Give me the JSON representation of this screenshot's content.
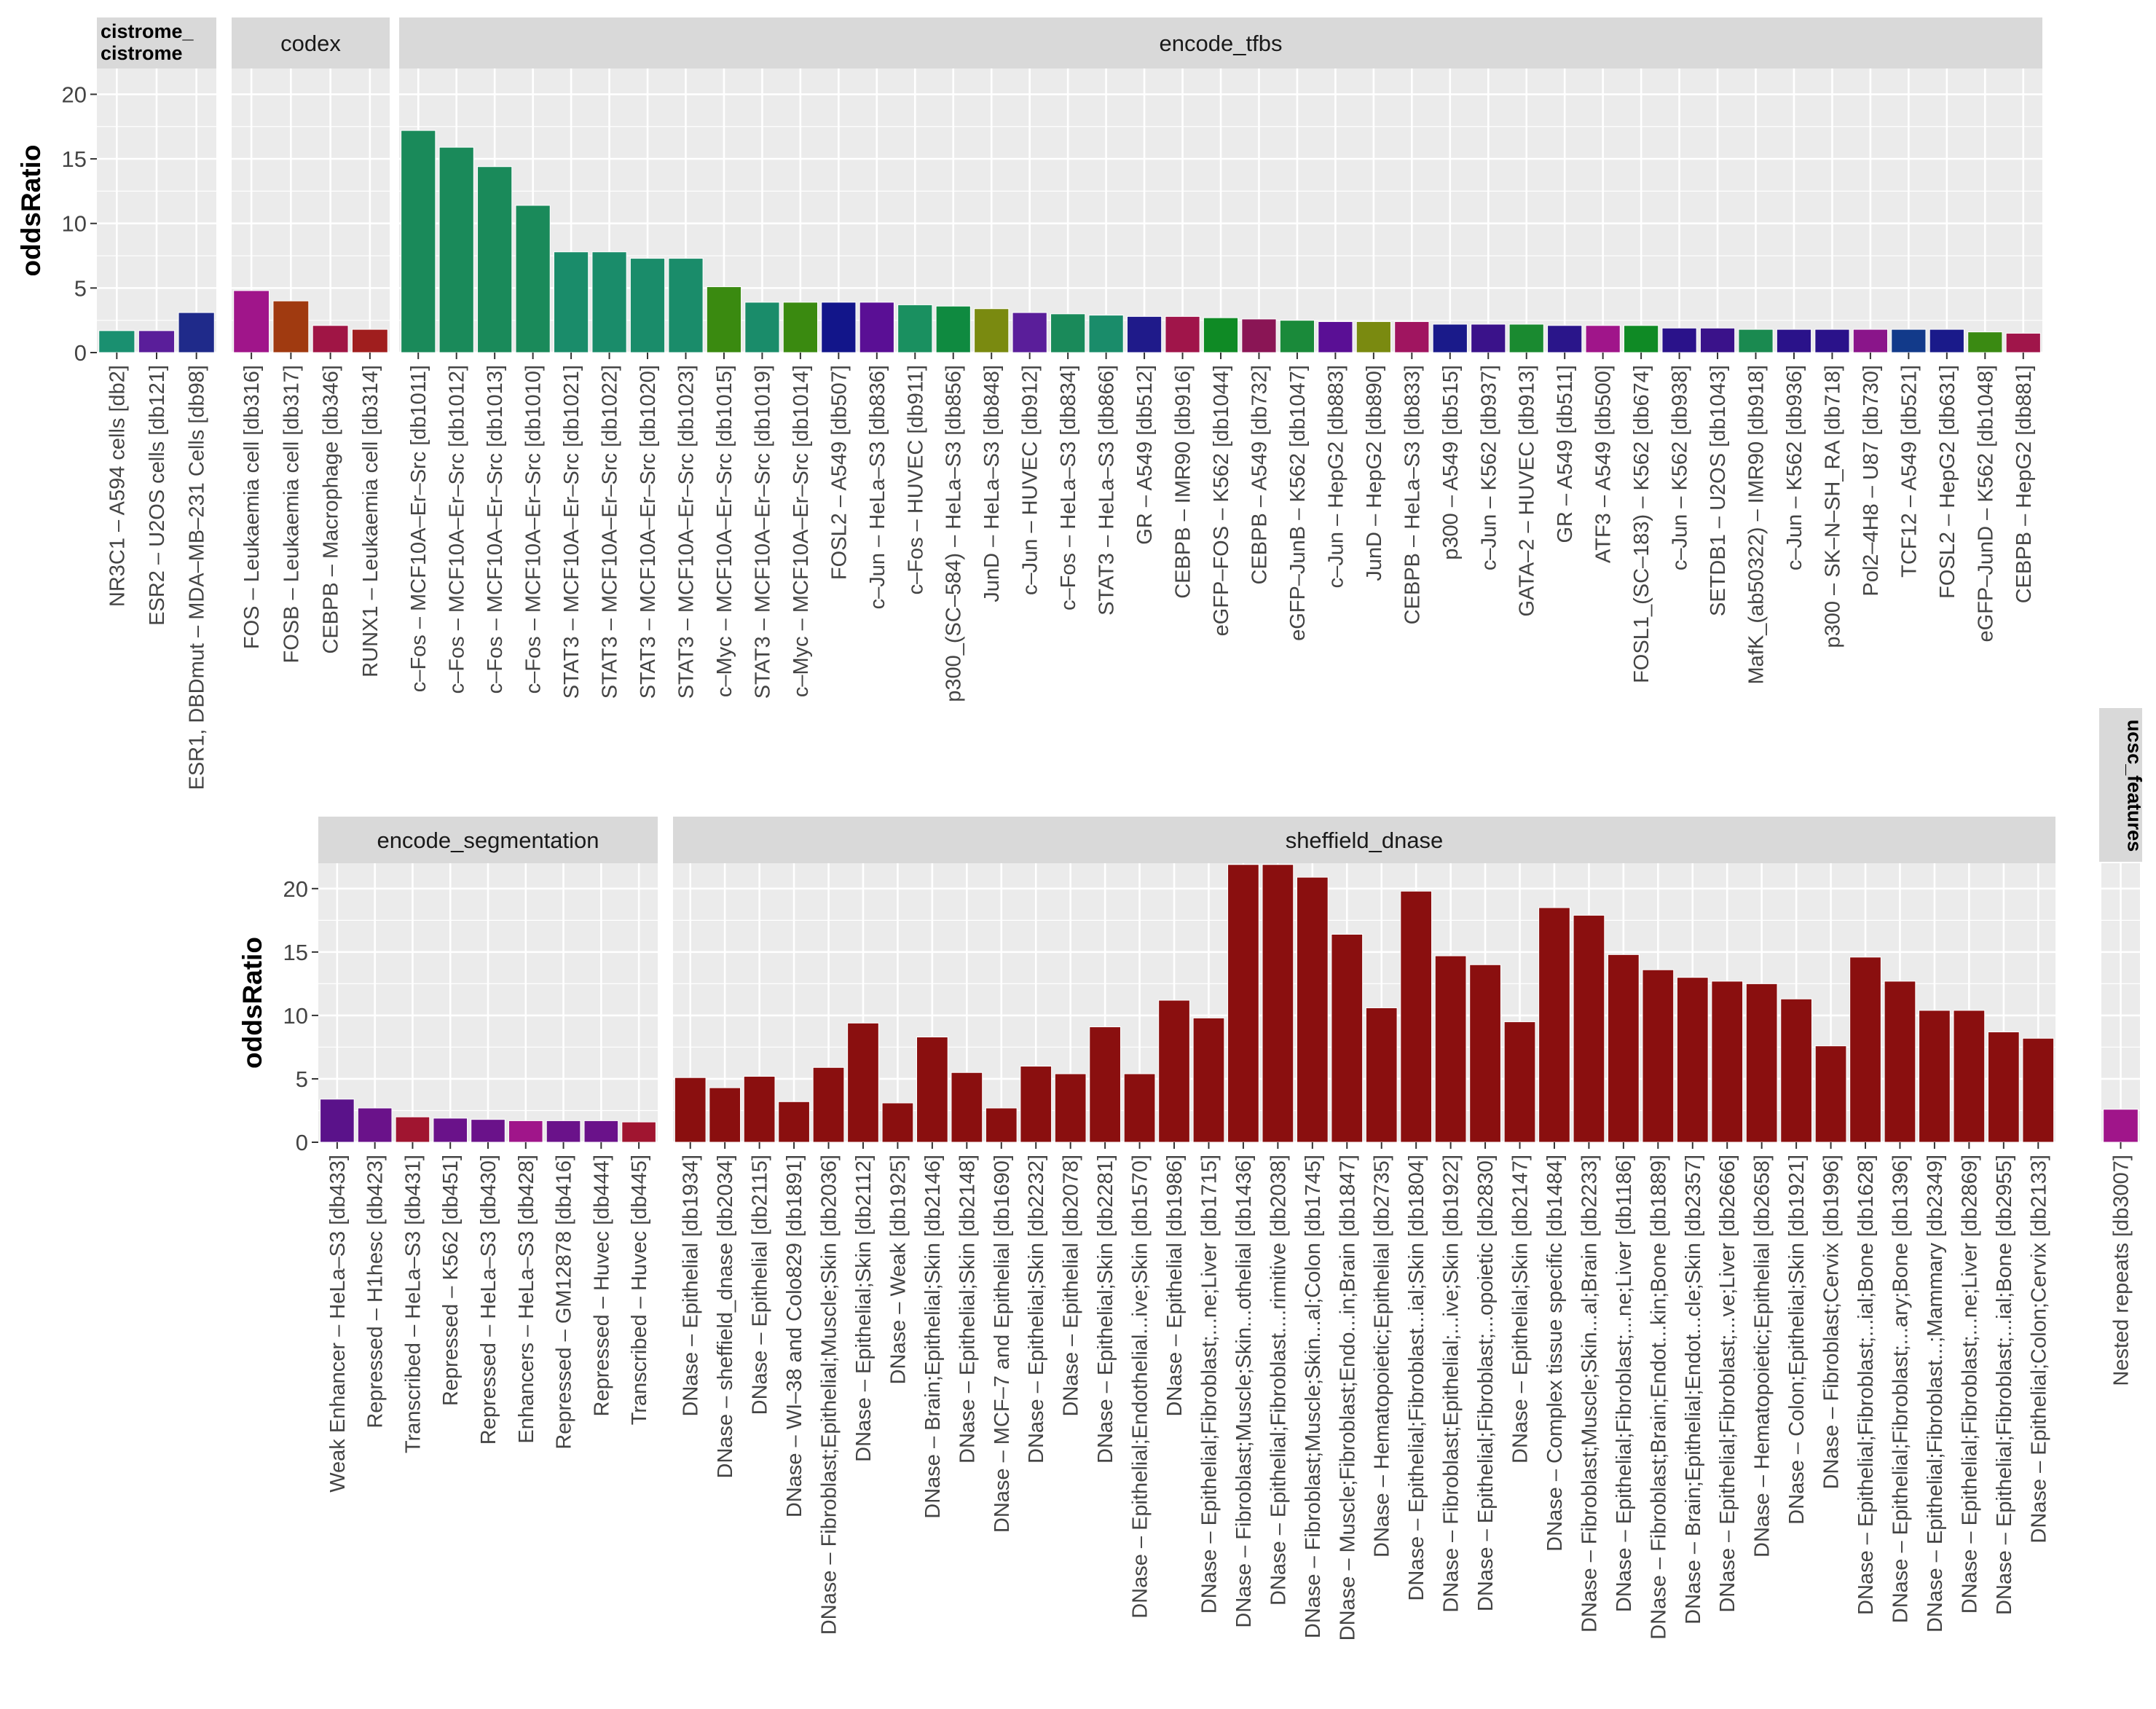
{
  "chart_data": {
    "type": "bar",
    "ylabel": "oddsRatio",
    "ylim": [
      0,
      22
    ],
    "yticks": [
      0,
      5,
      10,
      15,
      20
    ],
    "grid": true,
    "legend": "none",
    "facets": [
      {
        "name": "cistrome_cistrome",
        "strip_lines": [
          "cistrome_",
          "cistrome"
        ],
        "categories": [
          "NR3C1 – A594 cells [db2]",
          "ESR2 – U2OS cells [db121]",
          "ESR1, DBDmut – MDA–MB–231 Cells [db98]"
        ],
        "values": [
          1.7,
          1.7,
          3.1
        ],
        "colors": [
          "#1a9070",
          "#5a1e9a",
          "#1f2a8a"
        ]
      },
      {
        "name": "codex",
        "strip_lines": [
          "codex"
        ],
        "categories": [
          "FOS – Leukaemia cell [db316]",
          "FOSB – Leukaemia cell [db317]",
          "CEBPB – Macrophage [db346]",
          "RUNX1 – Leukaemia cell [db314]"
        ],
        "values": [
          4.8,
          4.0,
          2.1,
          1.8
        ],
        "colors": [
          "#a0158a",
          "#a03a10",
          "#a01545",
          "#a01e1e"
        ]
      },
      {
        "name": "encode_tfbs",
        "strip_lines": [
          "encode_tfbs"
        ],
        "categories": [
          "c–Fos – MCF10A–Er–Src [db1011]",
          "c–Fos – MCF10A–Er–Src [db1012]",
          "c–Fos – MCF10A–Er–Src [db1013]",
          "c–Fos – MCF10A–Er–Src [db1010]",
          "STAT3 – MCF10A–Er–Src [db1021]",
          "STAT3 – MCF10A–Er–Src [db1022]",
          "STAT3 – MCF10A–Er–Src [db1020]",
          "STAT3 – MCF10A–Er–Src [db1023]",
          "c–Myc – MCF10A–Er–Src [db1015]",
          "STAT3 – MCF10A–Er–Src [db1019]",
          "c–Myc – MCF10A–Er–Src [db1014]",
          "FOSL2 – A549 [db507]",
          "c–Jun – HeLa–S3 [db836]",
          "c–Fos – HUVEC [db911]",
          "p300_(SC–584) – HeLa–S3 [db856]",
          "JunD – HeLa–S3 [db848]",
          "c–Jun – HUVEC [db912]",
          "c–Fos – HeLa–S3 [db834]",
          "STAT3 – HeLa–S3 [db866]",
          "GR – A549 [db512]",
          "CEBPB – IMR90 [db916]",
          "eGFP–FOS – K562 [db1044]",
          "CEBPB – A549 [db732]",
          "eGFP–JunB – K562 [db1047]",
          "c–Jun – HepG2 [db883]",
          "JunD – HepG2 [db890]",
          "CEBPB – HeLa–S3 [db833]",
          "p300 – A549 [db515]",
          "c–Jun – K562 [db937]",
          "GATA–2 – HUVEC [db913]",
          "GR – A549 [db511]",
          "ATF3 – A549 [db500]",
          "FOSL1_(SC–183) – K562 [db674]",
          "c–Jun – K562 [db938]",
          "SETDB1 – U2OS [db1043]",
          "MafK_(ab50322) – IMR90 [db918]",
          "c–Jun – K562 [db936]",
          "p300 – SK–N–SH_RA [db718]",
          "Pol2–4H8 – U87 [db730]",
          "TCF12 – A549 [db521]",
          "FOSL2 – HepG2 [db631]",
          "eGFP–JunD – K562 [db1048]",
          "CEBPB – HepG2 [db881]"
        ],
        "values": [
          17.2,
          15.9,
          14.4,
          11.4,
          7.8,
          7.8,
          7.3,
          7.3,
          5.1,
          3.9,
          3.9,
          3.9,
          3.9,
          3.7,
          3.6,
          3.4,
          3.1,
          3.0,
          2.9,
          2.8,
          2.8,
          2.7,
          2.6,
          2.5,
          2.4,
          2.4,
          2.4,
          2.2,
          2.2,
          2.2,
          2.1,
          2.1,
          2.1,
          1.9,
          1.9,
          1.8,
          1.8,
          1.8,
          1.8,
          1.8,
          1.8,
          1.6,
          1.5
        ],
        "colors": [
          "#1a8a5a",
          "#1a8a5a",
          "#1a8a5a",
          "#1a8a5a",
          "#1a8c6a",
          "#1a8c6a",
          "#1a8c6a",
          "#1a8c6a",
          "#3a8a10",
          "#1a8c6a",
          "#3a8a10",
          "#12158a",
          "#5a0f95",
          "#1a9060",
          "#0f8a40",
          "#7a8a10",
          "#5a1e9a",
          "#1a8a5a",
          "#1a8c6a",
          "#1f1a8a",
          "#a0154a",
          "#0f8a25",
          "#8a1555",
          "#1a8a3a",
          "#5a0f95",
          "#7a8a10",
          "#a01560",
          "#1a1a8a",
          "#3a128a",
          "#1a8a30",
          "#2a158a",
          "#a0158a",
          "#0f8a25",
          "#2a128a",
          "#3a128a",
          "#1a8a50",
          "#2a128a",
          "#2a128a",
          "#8a158a",
          "#123a8a",
          "#1a1a8a",
          "#3a8a12",
          "#a0154a"
        ]
      },
      {
        "name": "encode_segmentation",
        "strip_lines": [
          "encode_segmentation"
        ],
        "categories": [
          "Weak Enhancer – HeLa–S3 [db433]",
          "Repressed – H1hesc [db423]",
          "Transcribed – HeLa–S3 [db431]",
          "Repressed – K562 [db451]",
          "Repressed – HeLa–S3 [db430]",
          "Enhancers – HeLa–S3 [db428]",
          "Repressed – GM12878 [db416]",
          "Repressed – Huvec [db444]",
          "Transcribed – Huvec [db445]"
        ],
        "values": [
          3.4,
          2.7,
          2.0,
          1.9,
          1.8,
          1.7,
          1.7,
          1.7,
          1.6
        ],
        "colors": [
          "#5a128a",
          "#6a128a",
          "#a01530",
          "#6a128a",
          "#6a128a",
          "#a0158a",
          "#6a128a",
          "#6a128a",
          "#a01530"
        ]
      },
      {
        "name": "sheffield_dnase",
        "strip_lines": [
          "sheffield_dnase"
        ],
        "categories": [
          "DNase – Epithelial [db1934]",
          "DNase – sheffield_dnase [db2034]",
          "DNase – Epithelial [db2115]",
          "DNase – WI–38 and Colo829 [db1891]",
          "DNase – Fibroblast;Epithelial;Muscle;Skin [db2036]",
          "DNase – Epithelial;Skin [db2112]",
          "DNase – Weak [db1925]",
          "DNase – Brain;Epithelial;Skin [db2146]",
          "DNase – Epithelial;Skin [db2148]",
          "DNase – MCF–7 and Epithelial [db1690]",
          "DNase – Epithelial;Skin [db2232]",
          "DNase – Epithelial [db2078]",
          "DNase – Epithelial;Skin [db2281]",
          "DNase – Epithelial;Endothelial...ive;Skin [db1570]",
          "DNase – Epithelial [db1986]",
          "DNase – Epithelial;Fibroblast;...ne;Liver [db1715]",
          "DNase – Fibroblast;Muscle;Skin...othelial [db1436]",
          "DNase – Epithelial;Fibroblast....rimitive [db2038]",
          "DNase – Fibroblast;Muscle;Skin...al;Colon [db1745]",
          "DNase – Muscle;Fibroblast;Endo...in;Brain [db1847]",
          "DNase – Hematopoietic;Epithelial [db2735]",
          "DNase – Epithelial;Fibroblast...ial;Skin [db1804]",
          "DNase – Fibroblast;Epithelial;...ive;Skin [db1922]",
          "DNase – Epithelial;Fibroblast;...opoietic [db2830]",
          "DNase – Epithelial;Skin [db2147]",
          "DNase – Complex tissue specific [db1484]",
          "DNase – Fibroblast;Muscle;Skin...al;Brain [db2233]",
          "DNase – Epithelial;Fibroblast;...ne;Liver [db1186]",
          "DNase – Fibroblast;Brain;Endot...kin;Bone [db1889]",
          "DNase – Brain;Epithelial;Endot...cle;Skin [db2357]",
          "DNase – Epithelial;Fibroblast;...ve;Liver [db2666]",
          "DNase – Hematopoietic;Epithelial [db2658]",
          "DNase – Colon;Epithelial;Skin [db1921]",
          "DNase – Fibroblast;Cervix [db1996]",
          "DNase – Epithelial;Fibroblast;...ial;Bone [db1628]",
          "DNase – Epithelial;Fibroblast;...ary;Bone [db1396]",
          "DNase – Epithelial;Fibroblast...;Mammary [db2349]",
          "DNase – Epithelial;Fibroblast;...ne;Liver [db2869]",
          "DNase – Epithelial;Fibroblast;...ial;Bone [db2955]",
          "DNase – Epithelial;Colon;Cervix [db2133]"
        ],
        "values": [
          5.1,
          4.3,
          5.2,
          3.2,
          5.9,
          9.4,
          3.1,
          8.3,
          5.5,
          2.7,
          6.0,
          5.4,
          9.1,
          5.4,
          11.2,
          9.8,
          21.9,
          21.9,
          20.9,
          16.4,
          10.6,
          19.8,
          14.7,
          14.0,
          9.5,
          18.5,
          17.9,
          14.8,
          13.6,
          13.0,
          12.7,
          12.5,
          11.3,
          7.6,
          14.6,
          12.7,
          10.4,
          10.4,
          8.7,
          8.2
        ],
        "colors": [
          "#8a0f0f"
        ]
      },
      {
        "name": "ucsc_features",
        "strip_lines": [
          "ucsc_features"
        ],
        "categories": [
          "Nested repeats [db3007]"
        ],
        "values": [
          2.6
        ],
        "colors": [
          "#a0158a"
        ]
      }
    ]
  },
  "theme": {
    "panel_background": "#ebebeb",
    "grid_color": "#ffffff",
    "strip_background": "#d9d9d9",
    "bar_outline": "#ffffff"
  }
}
